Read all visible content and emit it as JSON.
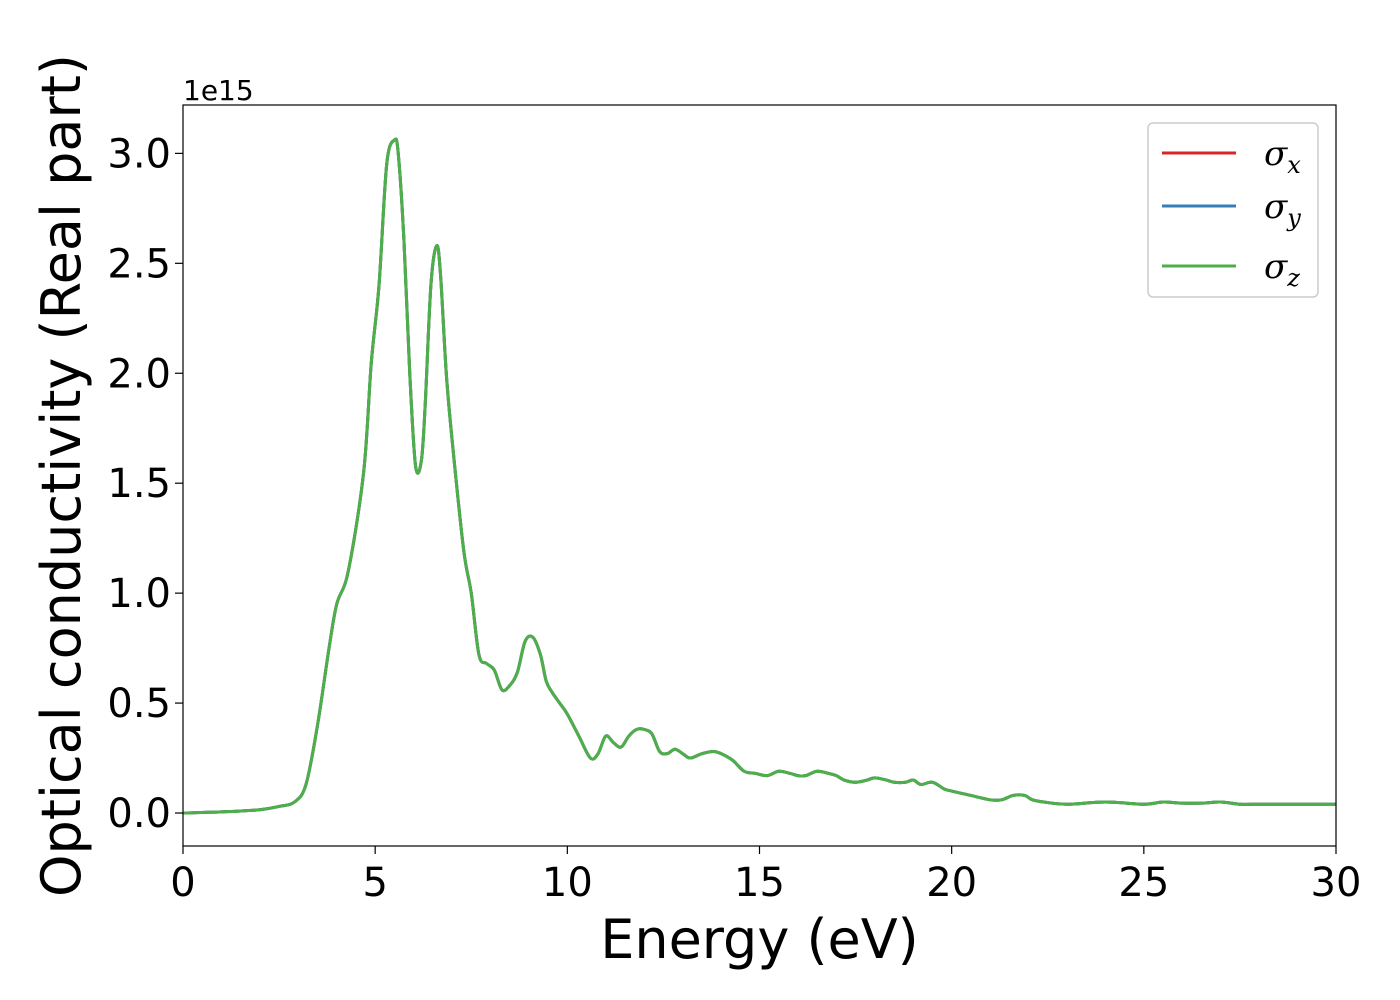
{
  "chart_data": {
    "type": "line",
    "title": "",
    "xlabel": "Energy (eV)",
    "ylabel": "Optical conductivity (Real part)",
    "y_offset_label": "1e15",
    "xlim": [
      0,
      30
    ],
    "ylim": [
      -0.15,
      3.22
    ],
    "x_ticks": [
      0,
      5,
      10,
      15,
      20,
      25,
      30
    ],
    "x_tick_labels": [
      "0",
      "5",
      "10",
      "15",
      "20",
      "25",
      "30"
    ],
    "y_ticks": [
      0.0,
      0.5,
      1.0,
      1.5,
      2.0,
      2.5,
      3.0
    ],
    "y_tick_labels": [
      "0.0",
      "0.5",
      "1.0",
      "1.5",
      "2.0",
      "2.5",
      "3.0"
    ],
    "grid": false,
    "legend_position": "top-right",
    "x": [
      0,
      1,
      2,
      2.5,
      2.9,
      3.2,
      3.5,
      3.8,
      4.0,
      4.3,
      4.7,
      4.9,
      5.1,
      5.3,
      5.5,
      5.6,
      5.75,
      5.9,
      6.05,
      6.2,
      6.3,
      6.45,
      6.6,
      6.7,
      6.85,
      7.0,
      7.3,
      7.5,
      7.7,
      7.9,
      8.1,
      8.3,
      8.5,
      8.7,
      8.9,
      9.1,
      9.3,
      9.45,
      9.6,
      9.8,
      10.0,
      10.3,
      10.6,
      10.8,
      11.0,
      11.2,
      11.4,
      11.6,
      11.8,
      12.0,
      12.2,
      12.4,
      12.6,
      12.8,
      13.0,
      13.2,
      13.5,
      13.8,
      14.0,
      14.3,
      14.6,
      14.9,
      15.2,
      15.5,
      15.8,
      16.0,
      16.2,
      16.5,
      16.8,
      17.0,
      17.2,
      17.5,
      17.8,
      18.0,
      18.3,
      18.5,
      18.8,
      19.0,
      19.2,
      19.5,
      19.8,
      20.0,
      20.5,
      21.0,
      21.3,
      21.6,
      21.9,
      22.1,
      22.4,
      23.0,
      24.0,
      25.0,
      25.5,
      26.0,
      26.5,
      27.0,
      27.5,
      28.0,
      28.5,
      29.0,
      29.5,
      30.0
    ],
    "series": [
      {
        "name": "σx",
        "label_main": "σ",
        "label_sub": "x",
        "color": "#d62728",
        "values": [
          0.0,
          0.005,
          0.015,
          0.03,
          0.05,
          0.13,
          0.4,
          0.75,
          0.95,
          1.1,
          1.55,
          2.05,
          2.4,
          2.95,
          3.06,
          3.0,
          2.6,
          2.0,
          1.58,
          1.6,
          1.85,
          2.4,
          2.58,
          2.45,
          2.0,
          1.7,
          1.2,
          1.0,
          0.72,
          0.68,
          0.65,
          0.56,
          0.58,
          0.64,
          0.78,
          0.8,
          0.72,
          0.6,
          0.55,
          0.5,
          0.45,
          0.35,
          0.25,
          0.27,
          0.35,
          0.32,
          0.3,
          0.35,
          0.38,
          0.38,
          0.36,
          0.28,
          0.27,
          0.29,
          0.27,
          0.25,
          0.27,
          0.28,
          0.27,
          0.24,
          0.19,
          0.18,
          0.17,
          0.19,
          0.18,
          0.17,
          0.17,
          0.19,
          0.18,
          0.17,
          0.15,
          0.14,
          0.15,
          0.16,
          0.15,
          0.14,
          0.14,
          0.15,
          0.13,
          0.14,
          0.11,
          0.1,
          0.08,
          0.06,
          0.06,
          0.08,
          0.08,
          0.06,
          0.05,
          0.04,
          0.05,
          0.04,
          0.05,
          0.045,
          0.045,
          0.05,
          0.04,
          0.04,
          0.04,
          0.04,
          0.04,
          0.04
        ]
      },
      {
        "name": "σy",
        "label_main": "σ",
        "label_sub": "y",
        "color": "#377eb8",
        "values": [
          0.0,
          0.005,
          0.015,
          0.03,
          0.05,
          0.13,
          0.4,
          0.75,
          0.95,
          1.1,
          1.55,
          2.05,
          2.4,
          2.95,
          3.06,
          3.0,
          2.6,
          2.0,
          1.58,
          1.6,
          1.85,
          2.4,
          2.58,
          2.45,
          2.0,
          1.7,
          1.2,
          1.0,
          0.72,
          0.68,
          0.65,
          0.56,
          0.58,
          0.64,
          0.78,
          0.8,
          0.72,
          0.6,
          0.55,
          0.5,
          0.45,
          0.35,
          0.25,
          0.27,
          0.35,
          0.32,
          0.3,
          0.35,
          0.38,
          0.38,
          0.36,
          0.28,
          0.27,
          0.29,
          0.27,
          0.25,
          0.27,
          0.28,
          0.27,
          0.24,
          0.19,
          0.18,
          0.17,
          0.19,
          0.18,
          0.17,
          0.17,
          0.19,
          0.18,
          0.17,
          0.15,
          0.14,
          0.15,
          0.16,
          0.15,
          0.14,
          0.14,
          0.15,
          0.13,
          0.14,
          0.11,
          0.1,
          0.08,
          0.06,
          0.06,
          0.08,
          0.08,
          0.06,
          0.05,
          0.04,
          0.05,
          0.04,
          0.05,
          0.045,
          0.045,
          0.05,
          0.04,
          0.04,
          0.04,
          0.04,
          0.04,
          0.04
        ]
      },
      {
        "name": "σz",
        "label_main": "σ",
        "label_sub": "z",
        "color": "#4daf4a",
        "values": [
          0.0,
          0.005,
          0.015,
          0.03,
          0.05,
          0.13,
          0.4,
          0.75,
          0.95,
          1.1,
          1.55,
          2.05,
          2.4,
          2.95,
          3.06,
          3.0,
          2.6,
          2.0,
          1.58,
          1.6,
          1.85,
          2.4,
          2.58,
          2.45,
          2.0,
          1.7,
          1.2,
          1.0,
          0.72,
          0.68,
          0.65,
          0.56,
          0.58,
          0.64,
          0.78,
          0.8,
          0.72,
          0.6,
          0.55,
          0.5,
          0.45,
          0.35,
          0.25,
          0.27,
          0.35,
          0.32,
          0.3,
          0.35,
          0.38,
          0.38,
          0.36,
          0.28,
          0.27,
          0.29,
          0.27,
          0.25,
          0.27,
          0.28,
          0.27,
          0.24,
          0.19,
          0.18,
          0.17,
          0.19,
          0.18,
          0.17,
          0.17,
          0.19,
          0.18,
          0.17,
          0.15,
          0.14,
          0.15,
          0.16,
          0.15,
          0.14,
          0.14,
          0.15,
          0.13,
          0.14,
          0.11,
          0.1,
          0.08,
          0.06,
          0.06,
          0.08,
          0.08,
          0.06,
          0.05,
          0.04,
          0.05,
          0.04,
          0.05,
          0.045,
          0.045,
          0.05,
          0.04,
          0.04,
          0.04,
          0.04,
          0.04,
          0.04
        ]
      }
    ]
  }
}
